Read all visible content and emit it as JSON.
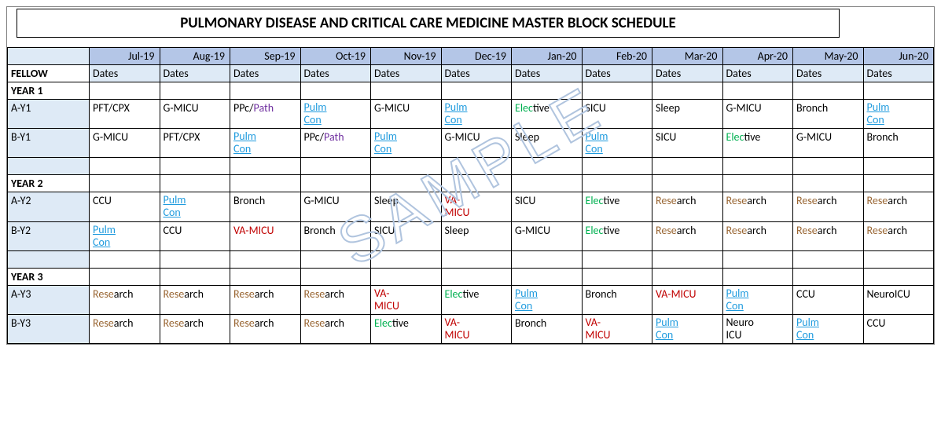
{
  "title": "PULMONARY DISEASE AND CRITICAL CARE MEDICINE MASTER BLOCK SCHEDULE",
  "watermark": "SAMPLE",
  "months": [
    "Jul-19",
    "Aug-19",
    "Sep-19",
    "Oct-19",
    "Nov-19",
    "Dec-19",
    "Jan-20",
    "Feb-20",
    "Mar-20",
    "Apr-20",
    "May-20",
    "Jun-20"
  ],
  "dates_label": "Dates",
  "fellow_label": "FELLOW",
  "colors": {
    "black": "#000000",
    "green": "#00b050",
    "blue_link": "#1f9bde",
    "purple": "#7030a0",
    "red": "#c00000",
    "brown": "#996633"
  },
  "segments": {
    "pft_cpx": [
      {
        "t": "PFT/CPX",
        "c": "black"
      }
    ],
    "g_micu": [
      {
        "t": "G-MICU",
        "c": "black"
      }
    ],
    "ppc_path": [
      {
        "t": "PPc",
        "c": "black"
      },
      {
        "t": "/",
        "c": "black"
      },
      {
        "t": "Path",
        "c": "purple"
      }
    ],
    "pulm_con": [
      {
        "t": "Pulm Con",
        "c": "blue_link",
        "u": true
      }
    ],
    "elective": [
      {
        "t": "E",
        "c": "green"
      },
      {
        "t": "lect",
        "c": "black"
      },
      {
        "t": "ive",
        "c": "black"
      }
    ],
    "elective_g": [
      {
        "t": "Elec",
        "c": "green"
      },
      {
        "t": "tive",
        "c": "black"
      }
    ],
    "sicu": [
      {
        "t": "SICU",
        "c": "black"
      }
    ],
    "sleep": [
      {
        "t": "Sleep",
        "c": "black"
      }
    ],
    "bronch": [
      {
        "t": "Bronch",
        "c": "black"
      }
    ],
    "ccu": [
      {
        "t": "CCU",
        "c": "black"
      }
    ],
    "va_micu": [
      {
        "t": "VA-MICU",
        "c": "red"
      }
    ],
    "va_micu_2l": [
      {
        "t": "VA-",
        "c": "red"
      },
      {
        "br": true
      },
      {
        "t": "MICU",
        "c": "red"
      }
    ],
    "research": [
      {
        "t": "Rese",
        "c": "brown"
      },
      {
        "t": "arch",
        "c": "black"
      }
    ],
    "neuroicu": [
      {
        "t": "NeuroICU",
        "c": "black"
      }
    ],
    "neuro_icu_2l": [
      {
        "t": "Neuro",
        "c": "black"
      },
      {
        "br": true
      },
      {
        "t": "ICU",
        "c": "black"
      }
    ]
  },
  "rows": [
    {
      "type": "section",
      "label": "YEAR 1"
    },
    {
      "type": "data",
      "label": "A-Y1",
      "cells": [
        "pft_cpx",
        "g_micu",
        "ppc_path",
        "pulm_con",
        "g_micu",
        "pulm_con",
        "elective_g",
        "sicu",
        "sleep",
        "g_micu",
        "bronch",
        "pulm_con"
      ]
    },
    {
      "type": "data",
      "label": "B-Y1",
      "cells": [
        "g_micu",
        "pft_cpx",
        "pulm_con",
        "ppc_path",
        "pulm_con",
        "g_micu",
        "sleep",
        "pulm_con",
        "sicu",
        "elective_g",
        "g_micu",
        "bronch"
      ]
    },
    {
      "type": "blank"
    },
    {
      "type": "section",
      "label": "YEAR 2"
    },
    {
      "type": "data",
      "label": "A-Y2",
      "cells": [
        "ccu",
        "pulm_con",
        "bronch",
        "g_micu",
        "sleep",
        "va_micu_2l",
        "sicu",
        "elective_g",
        "research",
        "research",
        "research",
        "research"
      ]
    },
    {
      "type": "data",
      "label": "B-Y2",
      "cells": [
        "pulm_con",
        "ccu",
        "va_micu",
        "bronch",
        "sicu",
        "sleep",
        "g_micu",
        "elective_g",
        "research",
        "research",
        "research",
        "research"
      ]
    },
    {
      "type": "blank"
    },
    {
      "type": "section",
      "label": "YEAR 3"
    },
    {
      "type": "data",
      "label": "A-Y3",
      "cells": [
        "research",
        "research",
        "research",
        "research",
        "va_micu_2l",
        "elective_g",
        "pulm_con",
        "bronch",
        "va_micu",
        "pulm_con",
        "ccu",
        "neuroicu"
      ]
    },
    {
      "type": "data",
      "label": "B-Y3",
      "cells": [
        "research",
        "research",
        "research",
        "research",
        "elective_g",
        "va_micu_2l",
        "bronch",
        "va_micu_2l",
        "pulm_con",
        "neuro_icu_2l",
        "pulm_con",
        "ccu"
      ]
    }
  ]
}
